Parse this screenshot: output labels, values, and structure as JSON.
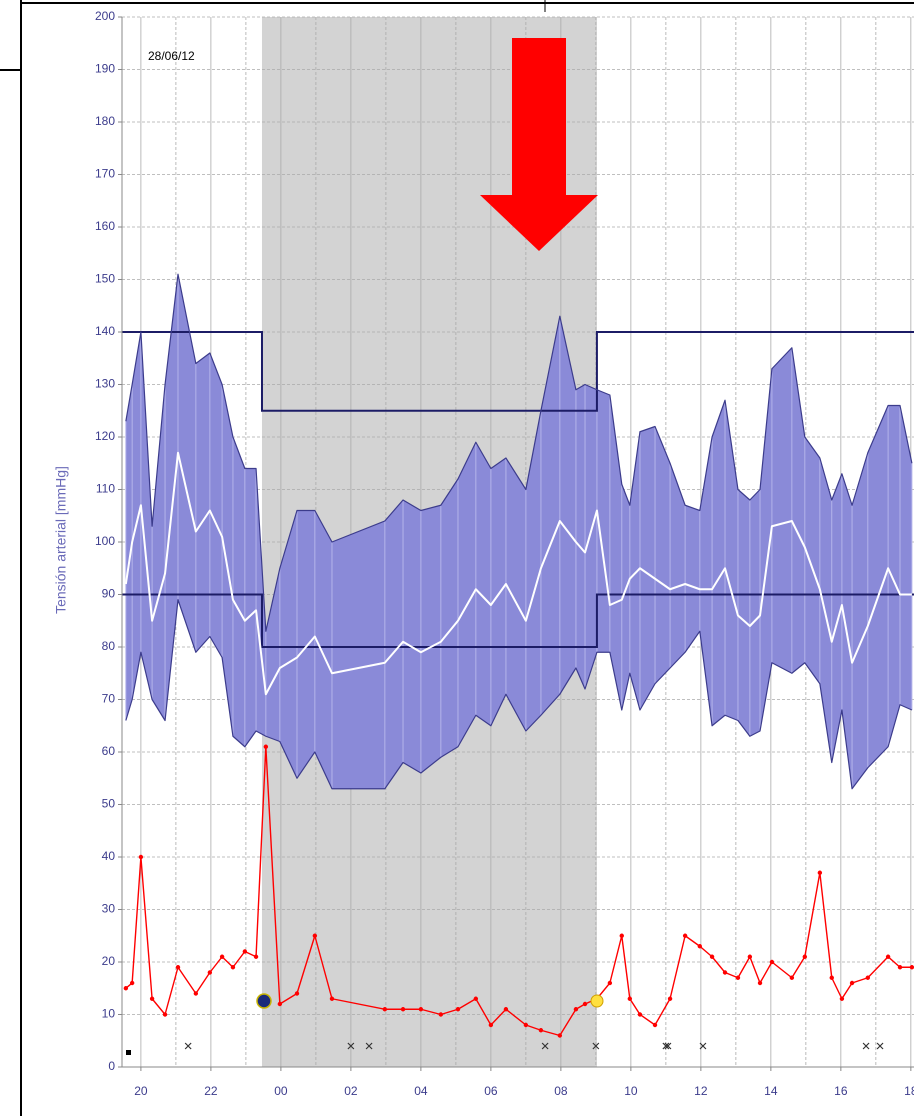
{
  "chart_data": {
    "type": "band",
    "annotation": "28/06/12",
    "y_label": "Tensión arterial [mmHg]",
    "x": [
      19.57,
      19.75,
      20.0,
      20.32,
      20.69,
      21.06,
      21.57,
      21.97,
      22.32,
      22.63,
      22.97,
      23.29,
      23.57,
      23.97,
      24.46,
      24.97,
      25.46,
      26.97,
      27.49,
      28.0,
      28.57,
      29.06,
      29.57,
      30.0,
      30.43,
      31.0,
      31.43,
      31.97,
      32.43,
      32.69,
      33.03,
      33.4,
      33.74,
      33.97,
      34.26,
      34.69,
      35.12,
      35.55,
      35.97,
      36.32,
      36.69,
      37.06,
      37.4,
      37.69,
      38.03,
      38.6,
      38.97,
      39.4,
      39.74,
      40.03,
      40.32,
      40.77,
      41.35,
      41.69,
      42.03
    ],
    "xlim": [
      19.46,
      42.09
    ],
    "xticks": [
      {
        "value": 20,
        "label": "20"
      },
      {
        "value": 22,
        "label": "22"
      },
      {
        "value": 24,
        "label": "00"
      },
      {
        "value": 26,
        "label": "02"
      },
      {
        "value": 28,
        "label": "04"
      },
      {
        "value": 30,
        "label": "06"
      },
      {
        "value": 32,
        "label": "08"
      },
      {
        "value": 34,
        "label": "10"
      },
      {
        "value": 36,
        "label": "12"
      },
      {
        "value": 38,
        "label": "14"
      },
      {
        "value": 40,
        "label": "16"
      },
      {
        "value": 42,
        "label": "18"
      }
    ],
    "minor_xticks": [
      21,
      23,
      25,
      27,
      29,
      31,
      33,
      35,
      37,
      39,
      41
    ],
    "ylim": [
      0,
      200
    ],
    "yticks": [
      0,
      10,
      20,
      30,
      40,
      50,
      60,
      70,
      80,
      90,
      100,
      110,
      120,
      130,
      140,
      150,
      160,
      170,
      180,
      190,
      200
    ],
    "grid": true,
    "band_color": "#8a8ad8",
    "night": [
      23.46,
      33.03
    ],
    "night_color": "#d3d3d3",
    "limits": {
      "day": [
        140,
        90
      ],
      "night": [
        125,
        80
      ]
    },
    "limit_color": "#1c1c66",
    "series": [
      {
        "color": "#3c3c8c",
        "values": [
          123,
          130,
          140,
          103,
          130,
          151,
          134,
          136,
          130,
          120,
          114,
          114,
          83,
          95,
          106,
          106,
          100,
          104,
          108,
          106,
          107,
          112,
          119,
          114,
          116,
          110,
          125,
          143,
          129,
          130,
          129,
          128,
          111,
          107,
          121,
          122,
          115,
          107,
          106,
          120,
          127,
          110,
          108,
          110,
          133,
          137,
          120,
          116,
          108,
          113,
          107,
          117,
          126,
          126,
          115
        ]
      },
      {
        "color": "#3c3c8c",
        "values": [
          66,
          70,
          79,
          70,
          66,
          89,
          79,
          82,
          78,
          63,
          61,
          64,
          63,
          62,
          55,
          60,
          53,
          53,
          58,
          56,
          59,
          61,
          67,
          65,
          71,
          64,
          67,
          71,
          76,
          72,
          79,
          79,
          68,
          75,
          68,
          73,
          76,
          79,
          83,
          65,
          67,
          66,
          63,
          64,
          77,
          75,
          77,
          73,
          58,
          68,
          53,
          57,
          61,
          69,
          68
        ]
      },
      {
        "color": "#ffffff",
        "values": [
          92,
          100,
          107,
          85,
          94,
          117,
          102,
          106,
          101,
          89,
          85,
          87,
          71,
          76,
          78,
          82,
          75,
          77,
          81,
          79,
          81,
          85,
          91,
          88,
          92,
          85,
          95,
          104,
          100,
          98,
          106,
          88,
          89,
          93,
          95,
          93,
          91,
          92,
          91,
          91,
          95,
          86,
          84,
          86,
          103,
          104,
          99,
          91,
          81,
          88,
          77,
          84,
          95,
          90,
          90
        ]
      },
      {
        "color": "#ff0000",
        "values": [
          15,
          16,
          40,
          13,
          10,
          19,
          14,
          18,
          21,
          19,
          22,
          21,
          61,
          12,
          14,
          25,
          13,
          11,
          11,
          11,
          10,
          11,
          13,
          8,
          11,
          8,
          7,
          6,
          11,
          12,
          13,
          16,
          25,
          13,
          10,
          8,
          13,
          25,
          23,
          21,
          18,
          17,
          21,
          16,
          20,
          17,
          21,
          37,
          17,
          13,
          16,
          17,
          21,
          19,
          19
        ]
      }
    ],
    "events": {
      "color": "#333333",
      "x": [
        21.35,
        26.0,
        26.52,
        31.55,
        33.0,
        35.0,
        35.06,
        36.06,
        40.72,
        41.12
      ],
      "values": [
        4,
        4,
        4,
        4,
        4,
        4,
        4,
        4,
        4,
        4
      ]
    }
  }
}
